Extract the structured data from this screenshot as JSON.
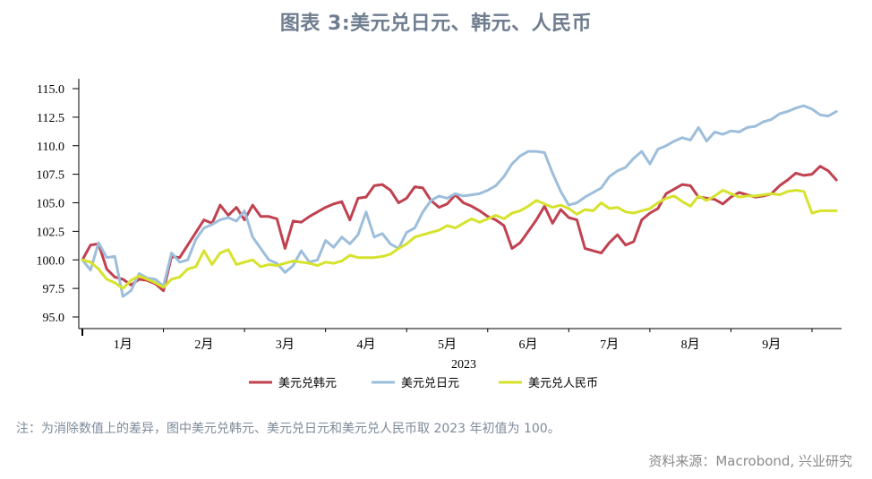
{
  "chart_data": {
    "type": "line",
    "title": "图表 3:美元兑日元、韩元、人民币",
    "xlabel": "2023",
    "ylabel": "",
    "ylim": [
      95.0,
      115.0
    ],
    "yticks": [
      "95.0",
      "97.5",
      "100.0",
      "102.5",
      "105.0",
      "107.5",
      "110.0",
      "112.5",
      "115.0"
    ],
    "xlim": [
      0,
      9.35
    ],
    "xticks": [
      {
        "label": "1月",
        "pos": 0.5
      },
      {
        "label": "2月",
        "pos": 1.5
      },
      {
        "label": "3月",
        "pos": 2.5
      },
      {
        "label": "4月",
        "pos": 3.5
      },
      {
        "label": "5月",
        "pos": 4.5
      },
      {
        "label": "6月",
        "pos": 5.5
      },
      {
        "label": "7月",
        "pos": 6.5
      },
      {
        "label": "8月",
        "pos": 7.5
      },
      {
        "label": "9月",
        "pos": 8.5
      }
    ],
    "month_boundaries": [
      0,
      1,
      2,
      3,
      4,
      5,
      6,
      7,
      8,
      9
    ],
    "grid": false,
    "legend_position": "bottom",
    "x": [
      0,
      0.1,
      0.2,
      0.3,
      0.4,
      0.5,
      0.6,
      0.7,
      0.8,
      0.9,
      1.0,
      1.1,
      1.2,
      1.3,
      1.4,
      1.5,
      1.6,
      1.7,
      1.8,
      1.9,
      2.0,
      2.1,
      2.2,
      2.3,
      2.4,
      2.5,
      2.6,
      2.7,
      2.8,
      2.9,
      3.0,
      3.1,
      3.2,
      3.3,
      3.4,
      3.5,
      3.6,
      3.7,
      3.8,
      3.9,
      4.0,
      4.1,
      4.2,
      4.3,
      4.4,
      4.5,
      4.6,
      4.7,
      4.8,
      4.9,
      5.0,
      5.1,
      5.2,
      5.3,
      5.4,
      5.5,
      5.6,
      5.7,
      5.8,
      5.9,
      6.0,
      6.1,
      6.2,
      6.3,
      6.4,
      6.5,
      6.6,
      6.7,
      6.8,
      6.9,
      7.0,
      7.1,
      7.2,
      7.3,
      7.4,
      7.5,
      7.6,
      7.7,
      7.8,
      7.9,
      8.0,
      8.1,
      8.2,
      8.3,
      8.4,
      8.5,
      8.6,
      8.7,
      8.8,
      8.9,
      9.0,
      9.1,
      9.2,
      9.3
    ],
    "series": [
      {
        "name": "美元兑韩元",
        "color": "#c0414f",
        "values": [
          100.0,
          101.3,
          101.4,
          99.2,
          98.5,
          98.3,
          97.8,
          98.3,
          98.2,
          97.9,
          97.3,
          100.3,
          100.2,
          101.3,
          102.4,
          103.5,
          103.2,
          104.8,
          103.9,
          104.6,
          103.5,
          104.8,
          103.8,
          103.8,
          103.6,
          101.0,
          103.4,
          103.3,
          103.8,
          104.2,
          104.6,
          104.9,
          105.1,
          103.5,
          105.4,
          105.5,
          106.5,
          106.6,
          106.1,
          105.0,
          105.4,
          106.4,
          106.3,
          105.2,
          104.6,
          104.9,
          105.7,
          105.0,
          104.7,
          104.3,
          103.8,
          103.5,
          103.0,
          101.0,
          101.5,
          102.5,
          103.5,
          104.7,
          103.2,
          104.4,
          103.7,
          103.5,
          101.0,
          100.8,
          100.6,
          101.5,
          102.2,
          101.3,
          101.6,
          103.5,
          104.1,
          104.5,
          105.8,
          106.2,
          106.6,
          106.5,
          105.5,
          105.4,
          105.3,
          104.9,
          105.5,
          105.9,
          105.7,
          105.5,
          105.6,
          105.8,
          106.5,
          107.0,
          107.6,
          107.4,
          107.5,
          108.2,
          107.8,
          107.0
        ]
      },
      {
        "name": "美元兑日元",
        "color": "#9dbedb",
        "values": [
          100.0,
          99.1,
          101.5,
          100.2,
          100.3,
          96.8,
          97.3,
          98.8,
          98.4,
          98.3,
          97.7,
          100.6,
          99.8,
          100.0,
          101.8,
          102.8,
          103.1,
          103.5,
          103.7,
          103.4,
          104.3,
          102.0,
          101.0,
          100.0,
          99.7,
          98.9,
          99.5,
          100.8,
          99.8,
          100.0,
          101.7,
          101.1,
          102.0,
          101.4,
          102.2,
          104.2,
          102.0,
          102.3,
          101.4,
          101.0,
          102.4,
          102.8,
          104.2,
          105.2,
          105.6,
          105.4,
          105.8,
          105.6,
          105.7,
          105.8,
          106.1,
          106.5,
          107.3,
          108.4,
          109.1,
          109.5,
          109.5,
          109.4,
          107.6,
          106.0,
          104.8,
          105.0,
          105.5,
          105.9,
          106.3,
          107.3,
          107.8,
          108.1,
          108.9,
          109.5,
          108.4,
          109.7,
          110.0,
          110.4,
          110.7,
          110.5,
          111.6,
          110.4,
          111.2,
          111.0,
          111.3,
          111.2,
          111.6,
          111.7,
          112.1,
          112.3,
          112.8,
          113.0,
          113.3,
          113.5,
          113.2,
          112.7,
          112.6,
          113.0
        ]
      },
      {
        "name": "美元兑人民币",
        "color": "#d6e22c",
        "values": [
          100.0,
          99.8,
          99.2,
          98.3,
          98.0,
          97.5,
          98.2,
          98.6,
          98.3,
          98.0,
          97.6,
          98.3,
          98.5,
          99.2,
          99.4,
          100.8,
          99.6,
          100.6,
          100.9,
          99.6,
          99.8,
          100.0,
          99.4,
          99.6,
          99.5,
          99.7,
          99.9,
          99.8,
          99.7,
          99.5,
          99.8,
          99.7,
          99.9,
          100.4,
          100.2,
          100.2,
          100.2,
          100.3,
          100.5,
          101.0,
          101.4,
          102.0,
          102.2,
          102.4,
          102.6,
          103.0,
          102.8,
          103.2,
          103.6,
          103.3,
          103.6,
          103.9,
          103.6,
          104.1,
          104.3,
          104.7,
          105.2,
          104.9,
          104.6,
          104.8,
          104.5,
          104.0,
          104.4,
          104.3,
          105.0,
          104.5,
          104.6,
          104.2,
          104.1,
          104.3,
          104.5,
          105.0,
          105.4,
          105.6,
          105.1,
          104.7,
          105.6,
          105.2,
          105.6,
          106.1,
          105.8,
          105.5,
          105.6,
          105.6,
          105.7,
          105.8,
          105.7,
          106.0,
          106.1,
          106.0,
          104.1,
          104.3,
          104.3,
          104.3
        ]
      }
    ]
  },
  "footer": {
    "note": "注：为消除数值上的差异，图中美元兑韩元、美元兑日元和美元兑人民币取 2023 年初值为 100。",
    "source": "资料来源：Macrobond, 兴业研究"
  }
}
